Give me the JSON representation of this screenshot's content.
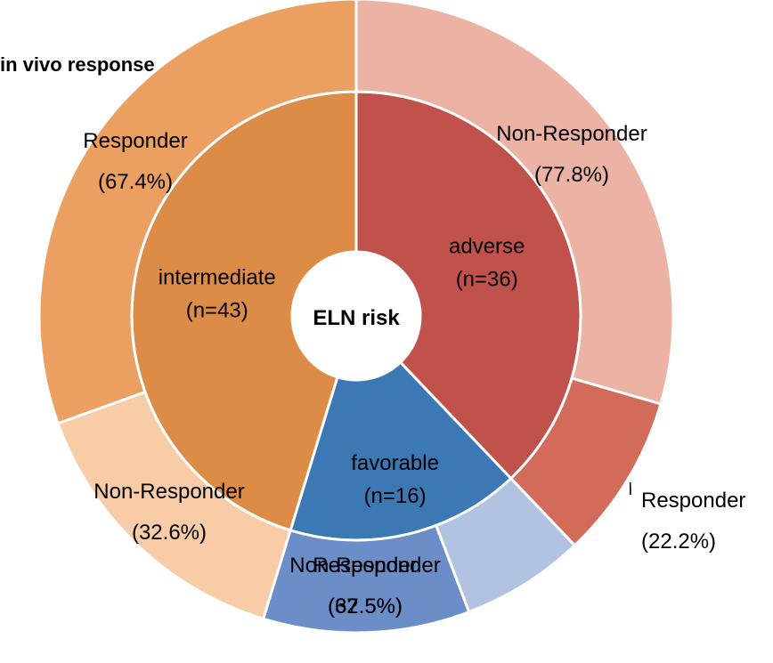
{
  "chart_data": {
    "type": "pie",
    "subtype": "sunburst",
    "center_label": "ELN risk",
    "outer_ring_title": "in vivo response",
    "inner": [
      {
        "name": "adverse",
        "n_label": "(n=36)",
        "value": 36,
        "color": "#c0524b"
      },
      {
        "name": "favorable",
        "n_label": "(n=16)",
        "value": 16,
        "color": "#3c78b4"
      },
      {
        "name": "intermediate",
        "n_label": "(n=43)",
        "value": 43,
        "color": "#dd8c47"
      }
    ],
    "outer": [
      {
        "parent": "adverse",
        "name": "Non-Responder",
        "pct_label": "(77.8%)",
        "fraction": 0.778,
        "color": "#ecb2a4"
      },
      {
        "parent": "adverse",
        "name": "Responder",
        "pct_label": "(22.2%)",
        "fraction": 0.222,
        "color": "#d36b5b"
      },
      {
        "parent": "favorable",
        "name": "Non-Responder",
        "pct_label": "(37.5%)",
        "fraction": 0.375,
        "color": "#b2c3e2"
      },
      {
        "parent": "favorable",
        "name": "Responder",
        "pct_label": "(62.5%)",
        "fraction": 0.625,
        "color": "#6b8ec9"
      },
      {
        "parent": "intermediate",
        "name": "Non-Responder",
        "pct_label": "(32.6%)",
        "fraction": 0.326,
        "color": "#f8cca7"
      },
      {
        "parent": "intermediate",
        "name": "Responder",
        "pct_label": "(67.4%)",
        "fraction": 0.674,
        "color": "#eba062"
      }
    ]
  }
}
